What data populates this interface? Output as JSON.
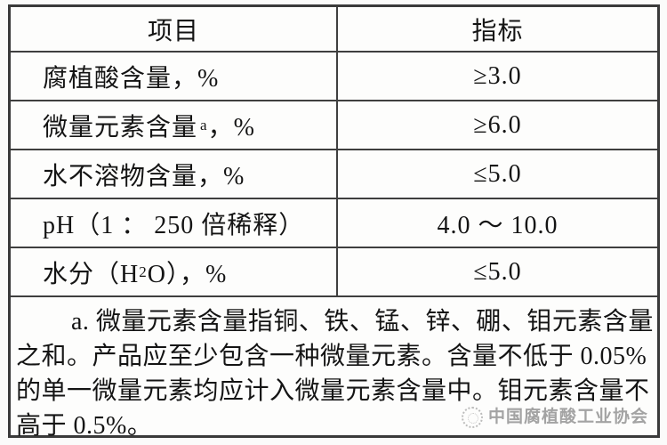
{
  "table": {
    "headers": {
      "item": "项目",
      "spec": "指标"
    },
    "rows": [
      {
        "item": "腐植酸含量，%",
        "spec": "≥3.0"
      },
      {
        "item_pre": "微量元素含量",
        "item_sup": "a",
        "item_post": "，%",
        "spec": "≥6.0"
      },
      {
        "item": "水不溶物含量，%",
        "spec": "≤5.0"
      },
      {
        "item": "pH（1 ： 250 倍稀释）",
        "spec": "4.0 ～ 10.0"
      },
      {
        "item_pre": "水分（H",
        "item_sub": "2",
        "item_post": "O），%",
        "spec": "≤5.0"
      }
    ],
    "footnote": {
      "lines": [
        "a. 微量元素含量指铜、铁、锰、锌、硼、钼元素含量",
        "之和。产品应至少包含一种微量元素。含量不低于 0.05%",
        "的单一微量元素均应计入微量元素含量中。钼元素含量不",
        "高于 0.5%。"
      ]
    }
  },
  "watermark": {
    "text": "中国腐植酸工业协会"
  },
  "colors": {
    "border": "#3f3f3f",
    "text": "#141414",
    "watermark": "#9a9a9a"
  }
}
